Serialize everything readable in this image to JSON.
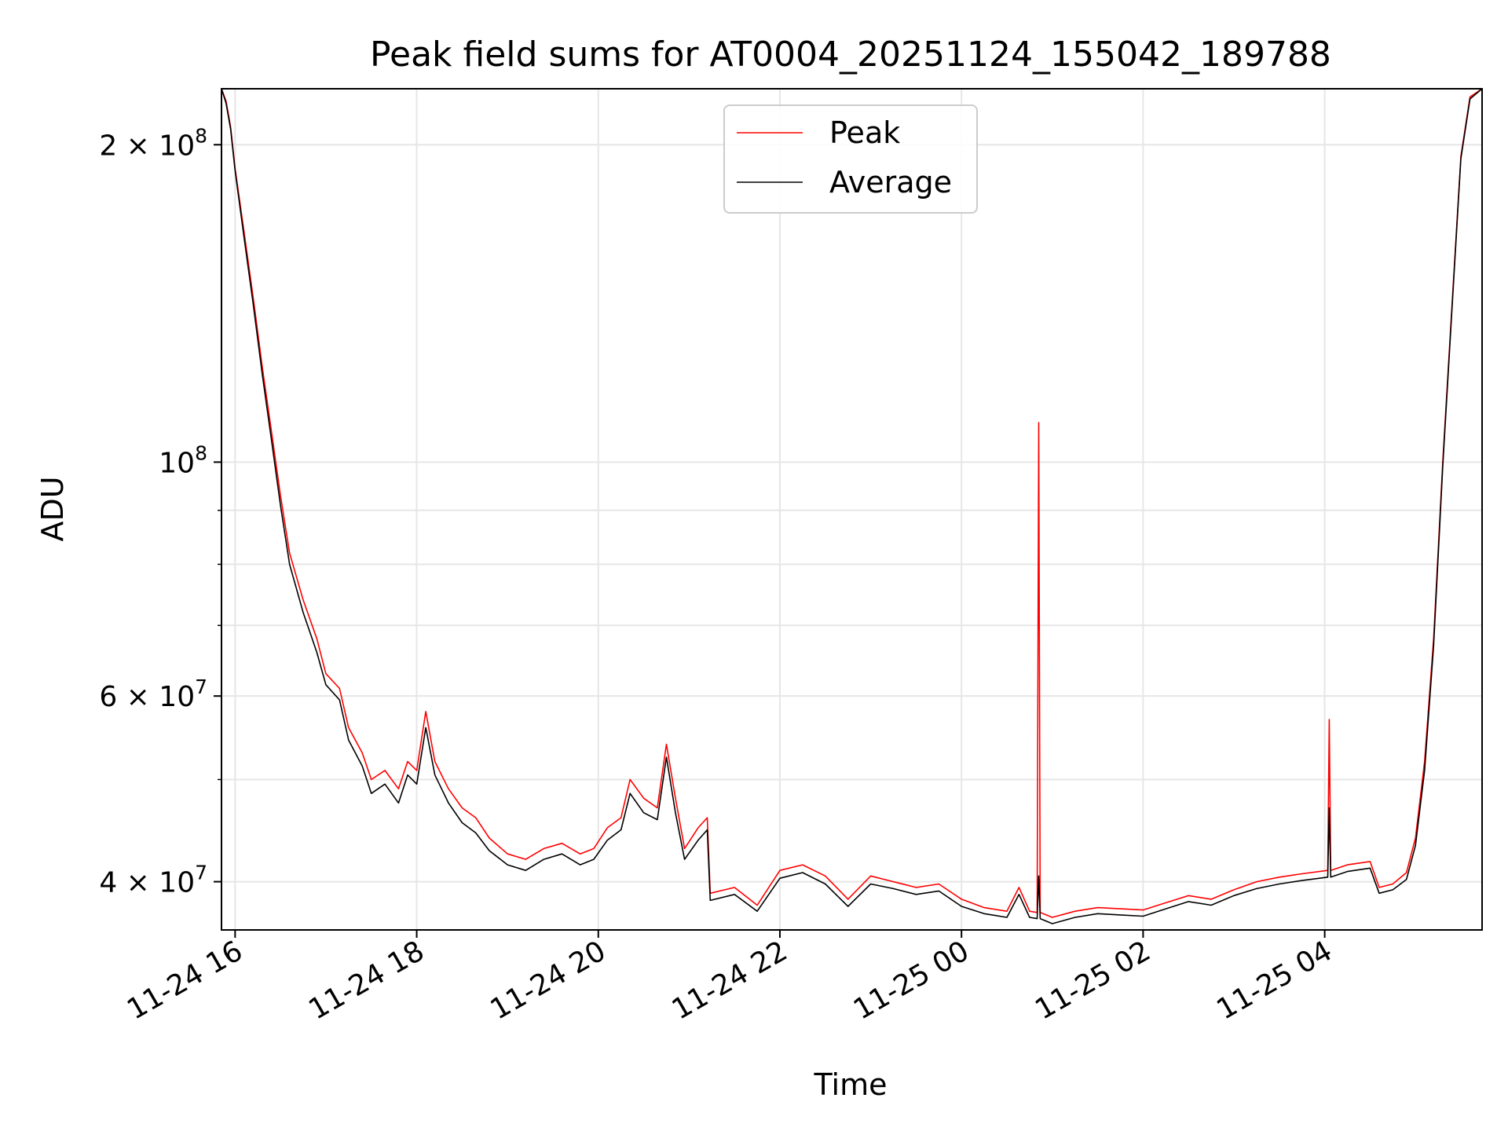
{
  "chart_data": {
    "type": "line",
    "title": "Peak field sums for AT0004_20251124_155042_189788",
    "xlabel": "Time",
    "ylabel": "ADU",
    "yscale": "log",
    "xlim": [
      "2025-11-24 15:51",
      "2025-11-25 05:44"
    ],
    "ylim": [
      36000000,
      226000000
    ],
    "x_ticks": [
      {
        "value": "2025-11-24 16:00",
        "label": "11-24 16"
      },
      {
        "value": "2025-11-24 18:00",
        "label": "11-24 18"
      },
      {
        "value": "2025-11-24 20:00",
        "label": "11-24 20"
      },
      {
        "value": "2025-11-24 22:00",
        "label": "11-24 22"
      },
      {
        "value": "2025-11-25 00:00",
        "label": "11-25 00"
      },
      {
        "value": "2025-11-25 02:00",
        "label": "11-25 02"
      },
      {
        "value": "2025-11-25 04:00",
        "label": "11-25 04"
      }
    ],
    "y_ticks": [
      {
        "value": 40000000,
        "base": "4 × 10",
        "exp": "7"
      },
      {
        "value": 60000000,
        "base": "6 × 10",
        "exp": "7"
      },
      {
        "value": 100000000,
        "base": "10",
        "exp": "8"
      },
      {
        "value": 200000000,
        "base": "2 × 10",
        "exp": "8"
      }
    ],
    "y_minor_ticks": [
      50000000,
      70000000,
      80000000,
      90000000
    ],
    "grid": true,
    "legend_position": "top-center",
    "series": [
      {
        "name": "Peak",
        "color": "#ff0000",
        "points": [
          [
            "2025-11-24 15:51",
            226000000
          ],
          [
            "2025-11-24 15:54",
            220000000
          ],
          [
            "2025-11-24 15:57",
            208000000
          ],
          [
            "2025-11-24 16:00",
            190000000
          ],
          [
            "2025-11-24 16:06",
            165000000
          ],
          [
            "2025-11-24 16:12",
            143000000
          ],
          [
            "2025-11-24 16:18",
            123000000
          ],
          [
            "2025-11-24 16:24",
            107000000
          ],
          [
            "2025-11-24 16:30",
            93000000
          ],
          [
            "2025-11-24 16:36",
            82000000
          ],
          [
            "2025-11-24 16:45",
            74000000
          ],
          [
            "2025-11-24 16:54",
            68000000
          ],
          [
            "2025-11-24 17:00",
            63000000
          ],
          [
            "2025-11-24 17:09",
            61000000
          ],
          [
            "2025-11-24 17:15",
            56000000
          ],
          [
            "2025-11-24 17:24",
            53000000
          ],
          [
            "2025-11-24 17:30",
            50000000
          ],
          [
            "2025-11-24 17:39",
            51000000
          ],
          [
            "2025-11-24 17:48",
            49000000
          ],
          [
            "2025-11-24 17:54",
            52000000
          ],
          [
            "2025-11-24 18:00",
            51000000
          ],
          [
            "2025-11-24 18:06",
            58000000
          ],
          [
            "2025-11-24 18:12",
            52000000
          ],
          [
            "2025-11-24 18:21",
            49000000
          ],
          [
            "2025-11-24 18:30",
            47000000
          ],
          [
            "2025-11-24 18:39",
            46000000
          ],
          [
            "2025-11-24 18:48",
            44000000
          ],
          [
            "2025-11-24 19:00",
            42500000
          ],
          [
            "2025-11-24 19:12",
            42000000
          ],
          [
            "2025-11-24 19:24",
            43000000
          ],
          [
            "2025-11-24 19:36",
            43500000
          ],
          [
            "2025-11-24 19:48",
            42500000
          ],
          [
            "2025-11-24 19:57",
            43000000
          ],
          [
            "2025-11-24 20:06",
            45000000
          ],
          [
            "2025-11-24 20:15",
            46000000
          ],
          [
            "2025-11-24 20:21",
            50000000
          ],
          [
            "2025-11-24 20:30",
            48000000
          ],
          [
            "2025-11-24 20:39",
            47000000
          ],
          [
            "2025-11-24 20:45",
            54000000
          ],
          [
            "2025-11-24 20:51",
            48000000
          ],
          [
            "2025-11-24 20:57",
            43000000
          ],
          [
            "2025-11-24 21:06",
            45000000
          ],
          [
            "2025-11-24 21:12",
            46000000
          ],
          [
            "2025-11-24 21:14",
            39000000
          ],
          [
            "2025-11-24 21:30",
            39500000
          ],
          [
            "2025-11-24 21:45",
            38000000
          ],
          [
            "2025-11-24 22:00",
            41000000
          ],
          [
            "2025-11-24 22:15",
            41500000
          ],
          [
            "2025-11-24 22:30",
            40500000
          ],
          [
            "2025-11-24 22:45",
            38500000
          ],
          [
            "2025-11-24 23:00",
            40500000
          ],
          [
            "2025-11-24 23:15",
            40000000
          ],
          [
            "2025-11-24 23:30",
            39500000
          ],
          [
            "2025-11-24 23:45",
            39800000
          ],
          [
            "2025-11-25 00:00",
            38500000
          ],
          [
            "2025-11-25 00:15",
            37800000
          ],
          [
            "2025-11-25 00:30",
            37500000
          ],
          [
            "2025-11-25 00:38",
            39500000
          ],
          [
            "2025-11-25 00:45",
            37500000
          ],
          [
            "2025-11-25 00:50",
            37400000
          ],
          [
            "2025-11-25 00:51",
            109000000
          ],
          [
            "2025-11-25 00:52",
            37400000
          ],
          [
            "2025-11-25 01:00",
            37000000
          ],
          [
            "2025-11-25 01:15",
            37500000
          ],
          [
            "2025-11-25 01:30",
            37800000
          ],
          [
            "2025-11-25 01:45",
            37700000
          ],
          [
            "2025-11-25 02:00",
            37600000
          ],
          [
            "2025-11-25 02:15",
            38200000
          ],
          [
            "2025-11-25 02:30",
            38800000
          ],
          [
            "2025-11-25 02:45",
            38500000
          ],
          [
            "2025-11-25 03:00",
            39300000
          ],
          [
            "2025-11-25 03:15",
            40000000
          ],
          [
            "2025-11-25 03:30",
            40400000
          ],
          [
            "2025-11-25 03:45",
            40700000
          ],
          [
            "2025-11-25 04:02",
            41000000
          ],
          [
            "2025-11-25 04:03",
            57000000
          ],
          [
            "2025-11-25 04:04",
            41000000
          ],
          [
            "2025-11-25 04:15",
            41500000
          ],
          [
            "2025-11-25 04:30",
            41800000
          ],
          [
            "2025-11-25 04:36",
            39500000
          ],
          [
            "2025-11-25 04:45",
            39800000
          ],
          [
            "2025-11-25 04:54",
            40800000
          ],
          [
            "2025-11-25 05:00",
            44000000
          ],
          [
            "2025-11-25 05:06",
            52000000
          ],
          [
            "2025-11-25 05:12",
            68000000
          ],
          [
            "2025-11-25 05:18",
            100000000
          ],
          [
            "2025-11-25 05:24",
            140000000
          ],
          [
            "2025-11-25 05:30",
            195000000
          ],
          [
            "2025-11-25 05:36",
            222000000
          ],
          [
            "2025-11-25 05:44",
            226000000
          ]
        ]
      },
      {
        "name": "Average",
        "color": "#000000",
        "points": [
          [
            "2025-11-24 15:51",
            226000000
          ],
          [
            "2025-11-24 15:54",
            219000000
          ],
          [
            "2025-11-24 15:57",
            207000000
          ],
          [
            "2025-11-24 16:00",
            189000000
          ],
          [
            "2025-11-24 16:06",
            163000000
          ],
          [
            "2025-11-24 16:12",
            141000000
          ],
          [
            "2025-11-24 16:18",
            121000000
          ],
          [
            "2025-11-24 16:24",
            105000000
          ],
          [
            "2025-11-24 16:30",
            91000000
          ],
          [
            "2025-11-24 16:36",
            80000000
          ],
          [
            "2025-11-24 16:45",
            72000000
          ],
          [
            "2025-11-24 16:54",
            66000000
          ],
          [
            "2025-11-24 17:00",
            61500000
          ],
          [
            "2025-11-24 17:09",
            59500000
          ],
          [
            "2025-11-24 17:15",
            54500000
          ],
          [
            "2025-11-24 17:24",
            51500000
          ],
          [
            "2025-11-24 17:30",
            48500000
          ],
          [
            "2025-11-24 17:39",
            49500000
          ],
          [
            "2025-11-24 17:48",
            47500000
          ],
          [
            "2025-11-24 17:54",
            50500000
          ],
          [
            "2025-11-24 18:00",
            49500000
          ],
          [
            "2025-11-24 18:06",
            56000000
          ],
          [
            "2025-11-24 18:12",
            50500000
          ],
          [
            "2025-11-24 18:21",
            47500000
          ],
          [
            "2025-11-24 18:30",
            45500000
          ],
          [
            "2025-11-24 18:39",
            44500000
          ],
          [
            "2025-11-24 18:48",
            42800000
          ],
          [
            "2025-11-24 19:00",
            41500000
          ],
          [
            "2025-11-24 19:12",
            41000000
          ],
          [
            "2025-11-24 19:24",
            42000000
          ],
          [
            "2025-11-24 19:36",
            42500000
          ],
          [
            "2025-11-24 19:48",
            41500000
          ],
          [
            "2025-11-24 19:57",
            42000000
          ],
          [
            "2025-11-24 20:06",
            43800000
          ],
          [
            "2025-11-24 20:15",
            44800000
          ],
          [
            "2025-11-24 20:21",
            48500000
          ],
          [
            "2025-11-24 20:30",
            46500000
          ],
          [
            "2025-11-24 20:39",
            45800000
          ],
          [
            "2025-11-24 20:45",
            52500000
          ],
          [
            "2025-11-24 20:51",
            46500000
          ],
          [
            "2025-11-24 20:57",
            42000000
          ],
          [
            "2025-11-24 21:06",
            43800000
          ],
          [
            "2025-11-24 21:12",
            44800000
          ],
          [
            "2025-11-24 21:14",
            38400000
          ],
          [
            "2025-11-24 21:30",
            38900000
          ],
          [
            "2025-11-24 21:45",
            37500000
          ],
          [
            "2025-11-24 22:00",
            40300000
          ],
          [
            "2025-11-24 22:15",
            40800000
          ],
          [
            "2025-11-24 22:30",
            39800000
          ],
          [
            "2025-11-24 22:45",
            37900000
          ],
          [
            "2025-11-24 23:00",
            39800000
          ],
          [
            "2025-11-24 23:15",
            39400000
          ],
          [
            "2025-11-24 23:30",
            38900000
          ],
          [
            "2025-11-24 23:45",
            39200000
          ],
          [
            "2025-11-25 00:00",
            37900000
          ],
          [
            "2025-11-25 00:15",
            37300000
          ],
          [
            "2025-11-25 00:30",
            37000000
          ],
          [
            "2025-11-25 00:38",
            38900000
          ],
          [
            "2025-11-25 00:45",
            37000000
          ],
          [
            "2025-11-25 00:50",
            36900000
          ],
          [
            "2025-11-25 00:51",
            40500000
          ],
          [
            "2025-11-25 00:52",
            36900000
          ],
          [
            "2025-11-25 01:00",
            36500000
          ],
          [
            "2025-11-25 01:15",
            37000000
          ],
          [
            "2025-11-25 01:30",
            37300000
          ],
          [
            "2025-11-25 01:45",
            37200000
          ],
          [
            "2025-11-25 02:00",
            37100000
          ],
          [
            "2025-11-25 02:15",
            37700000
          ],
          [
            "2025-11-25 02:30",
            38300000
          ],
          [
            "2025-11-25 02:45",
            38000000
          ],
          [
            "2025-11-25 03:00",
            38800000
          ],
          [
            "2025-11-25 03:15",
            39400000
          ],
          [
            "2025-11-25 03:30",
            39800000
          ],
          [
            "2025-11-25 03:45",
            40100000
          ],
          [
            "2025-11-25 04:02",
            40400000
          ],
          [
            "2025-11-25 04:03",
            47000000
          ],
          [
            "2025-11-25 04:04",
            40400000
          ],
          [
            "2025-11-25 04:15",
            40900000
          ],
          [
            "2025-11-25 04:30",
            41200000
          ],
          [
            "2025-11-25 04:36",
            39000000
          ],
          [
            "2025-11-25 04:45",
            39300000
          ],
          [
            "2025-11-25 04:54",
            40200000
          ],
          [
            "2025-11-25 05:00",
            43300000
          ],
          [
            "2025-11-25 05:06",
            51000000
          ],
          [
            "2025-11-25 05:12",
            67000000
          ],
          [
            "2025-11-25 05:18",
            99000000
          ],
          [
            "2025-11-25 05:24",
            139000000
          ],
          [
            "2025-11-25 05:30",
            194000000
          ],
          [
            "2025-11-25 05:36",
            221000000
          ],
          [
            "2025-11-25 05:44",
            226000000
          ]
        ]
      }
    ]
  }
}
